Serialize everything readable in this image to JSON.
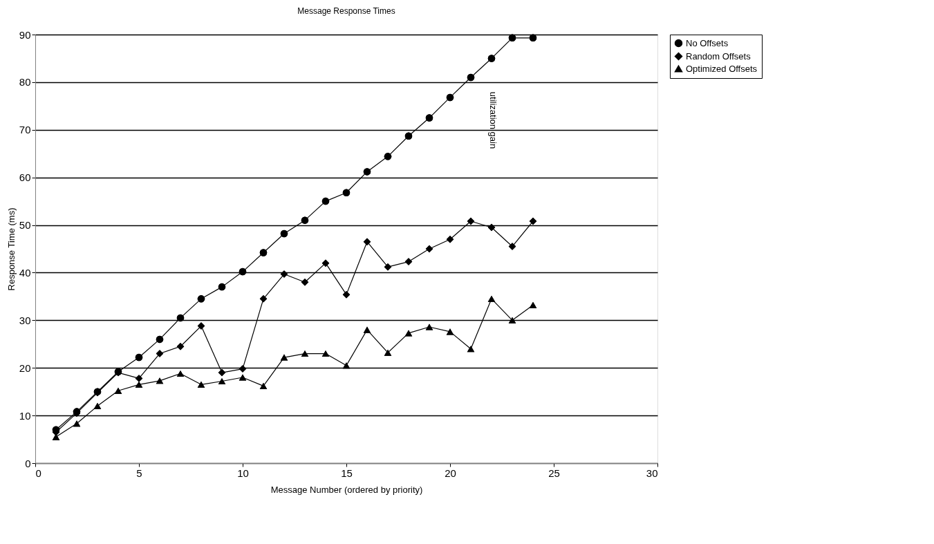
{
  "chart_data": {
    "type": "line",
    "title": "Message Response Times",
    "xlabel": "Message Number (ordered by priority)",
    "ylabel": "Response Time (ms)",
    "x": [
      1,
      2,
      3,
      4,
      5,
      6,
      7,
      8,
      9,
      10,
      11,
      12,
      13,
      14,
      15,
      16,
      17,
      18,
      19,
      20,
      21,
      22,
      23,
      24
    ],
    "series": [
      {
        "name": "No Offsets",
        "color": "#000000",
        "marker": "circle",
        "values": [
          7,
          10.8,
          15,
          19.2,
          22.2,
          26,
          30.5,
          34.5,
          37,
          40.2,
          44.2,
          48.2,
          51,
          55,
          56.8,
          61.2,
          64.4,
          68.7,
          72.5,
          76.8,
          81,
          85,
          89.3,
          89.3
        ]
      },
      {
        "name": "Random Offsets",
        "color": "#000000",
        "marker": "diamond",
        "values": [
          6.5,
          10.5,
          14.8,
          19,
          17.8,
          23,
          24.5,
          28.8,
          19,
          19.8,
          34.5,
          39.7,
          38,
          42,
          35.4,
          46.5,
          41.2,
          42.3,
          45,
          47,
          50.8,
          49.5,
          45.5,
          50.8
        ]
      },
      {
        "name": "Optimized Offsets",
        "color": "#000000",
        "marker": "triangle",
        "values": [
          5.5,
          8.3,
          12,
          15.2,
          16.5,
          17.3,
          18.8,
          16.5,
          17.2,
          18,
          16.2,
          22.2,
          23,
          23,
          20.5,
          28,
          23.2,
          27.3,
          28.6,
          27.6,
          24,
          34.5,
          30,
          33.2
        ]
      }
    ],
    "annotations": [
      "utilization gain"
    ],
    "xlim": [
      0,
      30
    ],
    "xticks": [
      0,
      5,
      10,
      15,
      20,
      25,
      30
    ],
    "ylim": [
      0,
      90
    ],
    "yticks": [
      0,
      10,
      20,
      30,
      40,
      50,
      60,
      70,
      80,
      90
    ],
    "grid": "y",
    "legend": "right",
    "line_style": "solid"
  }
}
